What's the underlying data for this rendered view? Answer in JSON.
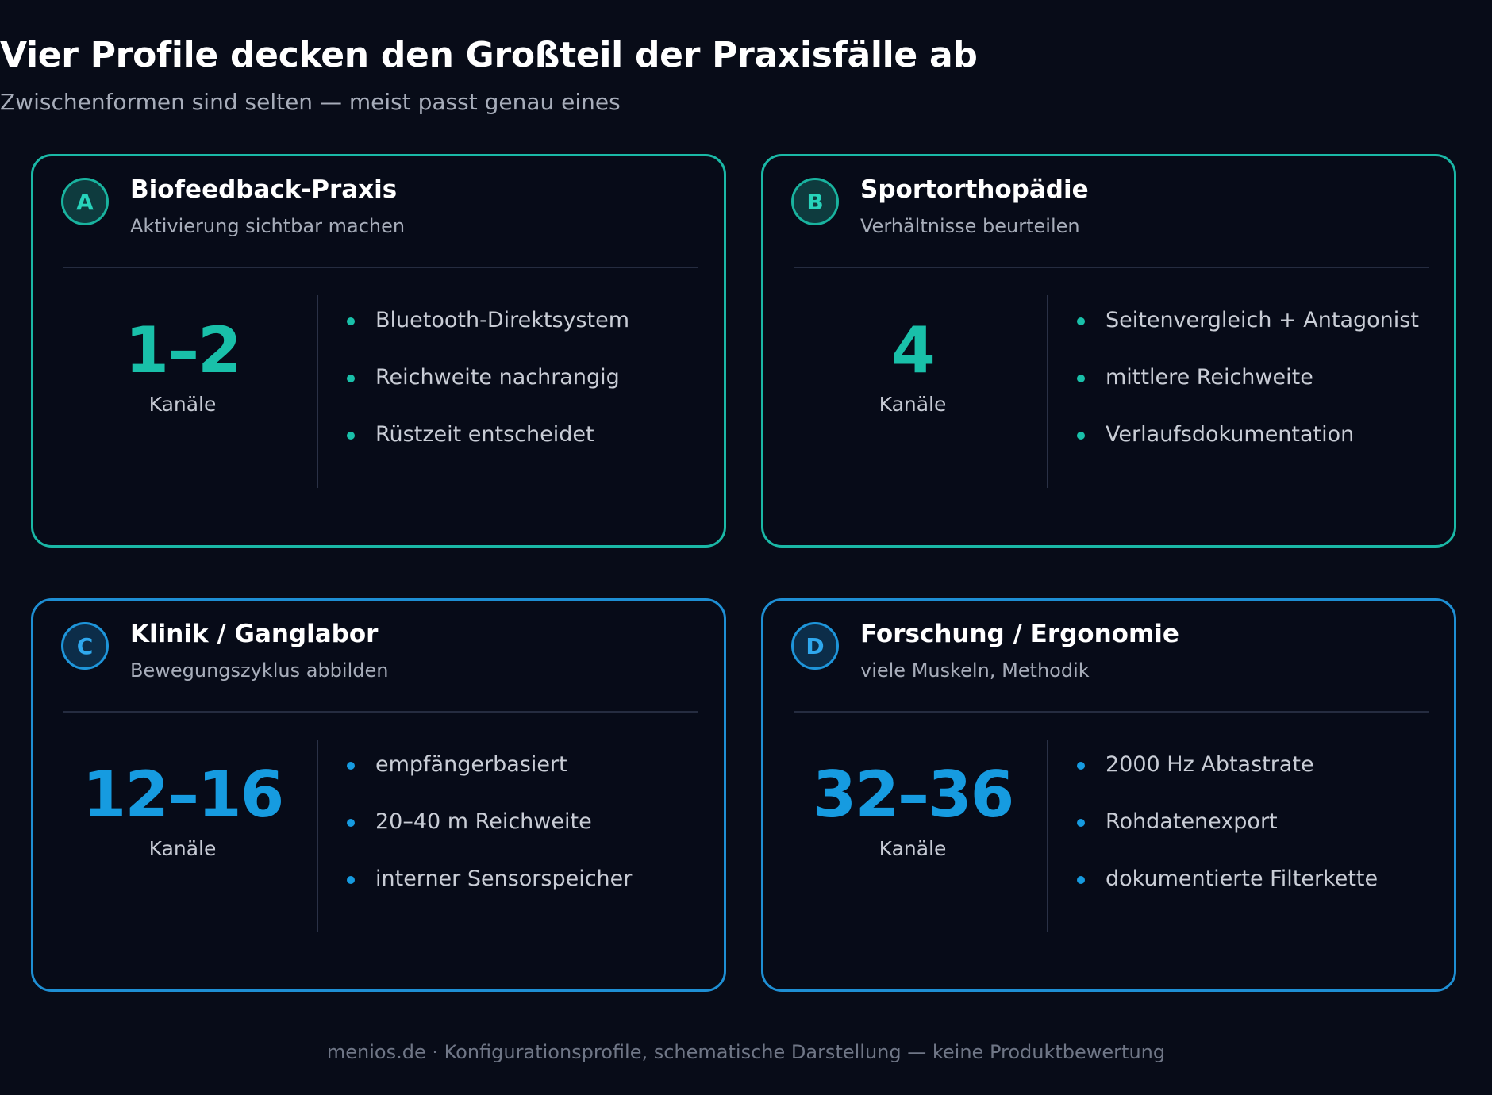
{
  "header": {
    "title": "Vier Profile decken den Großteil der Praxisfälle ab",
    "subtitle": "Zwischenformen sind selten — meist passt genau eines"
  },
  "colors": {
    "teal": "#19c0a9",
    "blue": "#169be0",
    "background": "#080c18"
  },
  "profiles": [
    {
      "letter": "A",
      "name": "Biofeedback-Praxis",
      "tagline": "Aktivierung sichtbar machen",
      "count": "1–2",
      "unit": "Kanäle",
      "accent": "teal",
      "features": [
        "Bluetooth-Direktsystem",
        "Reichweite nachrangig",
        "Rüstzeit entscheidet"
      ]
    },
    {
      "letter": "B",
      "name": "Sportorthopädie",
      "tagline": "Verhältnisse beurteilen",
      "count": "4",
      "unit": "Kanäle",
      "accent": "teal",
      "features": [
        "Seitenvergleich + Antagonist",
        "mittlere Reichweite",
        "Verlaufsdokumentation"
      ]
    },
    {
      "letter": "C",
      "name": "Klinik / Ganglabor",
      "tagline": "Bewegungszyklus abbilden",
      "count": "12–16",
      "unit": "Kanäle",
      "accent": "blue",
      "features": [
        "empfängerbasiert",
        "20–40 m Reichweite",
        "interner Sensorspeicher"
      ]
    },
    {
      "letter": "D",
      "name": "Forschung / Ergonomie",
      "tagline": "viele Muskeln, Methodik",
      "count": "32–36",
      "unit": "Kanäle",
      "accent": "blue",
      "features": [
        "2000 Hz Abtastrate",
        "Rohdatenexport",
        "dokumentierte Filterkette"
      ]
    }
  ],
  "footer": "menios.de · Konfigurationsprofile, schematische Darstellung — keine Produktbewertung"
}
